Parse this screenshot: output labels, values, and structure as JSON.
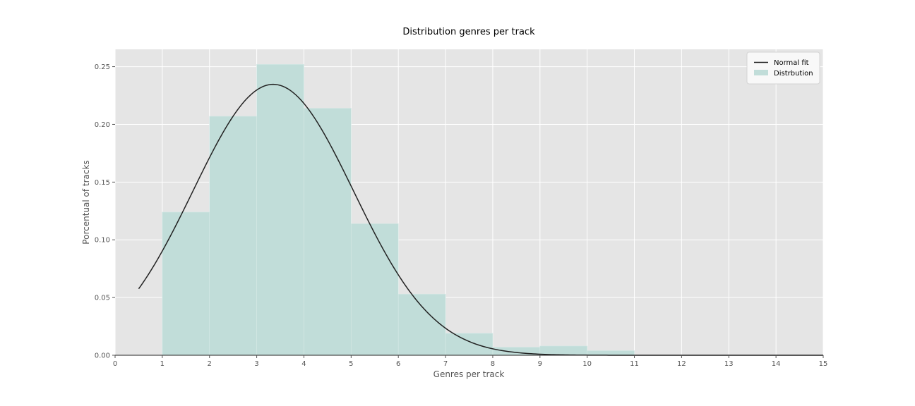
{
  "chart_data": {
    "type": "bar",
    "title": "Distribution genres per track",
    "xlabel": "Genres per track",
    "ylabel": "Porcentual of tracks",
    "xlim": [
      0,
      15
    ],
    "ylim": [
      0,
      0.265
    ],
    "xticks": [
      "0",
      "1",
      "2",
      "3",
      "4",
      "5",
      "6",
      "7",
      "8",
      "9",
      "10",
      "11",
      "12",
      "13",
      "14",
      "15"
    ],
    "yticks": [
      "0.00",
      "0.05",
      "0.10",
      "0.15",
      "0.20",
      "0.25"
    ],
    "grid": true,
    "legend_position": "top-right",
    "histogram": {
      "name": "Distrbution",
      "color": "#c1ddd9",
      "bin_edges": [
        1,
        2,
        3,
        4,
        5,
        6,
        7,
        8,
        9,
        10,
        11,
        12,
        13,
        14,
        15
      ],
      "values": [
        0.124,
        0.207,
        0.252,
        0.214,
        0.114,
        0.053,
        0.019,
        0.007,
        0.008,
        0.004,
        0.0,
        0.0,
        0.0,
        0.0
      ]
    },
    "normal_fit": {
      "name": "Normal fit",
      "color": "#222222",
      "mean": 3.35,
      "std": 1.7,
      "x_range": [
        0.5,
        15
      ]
    }
  }
}
